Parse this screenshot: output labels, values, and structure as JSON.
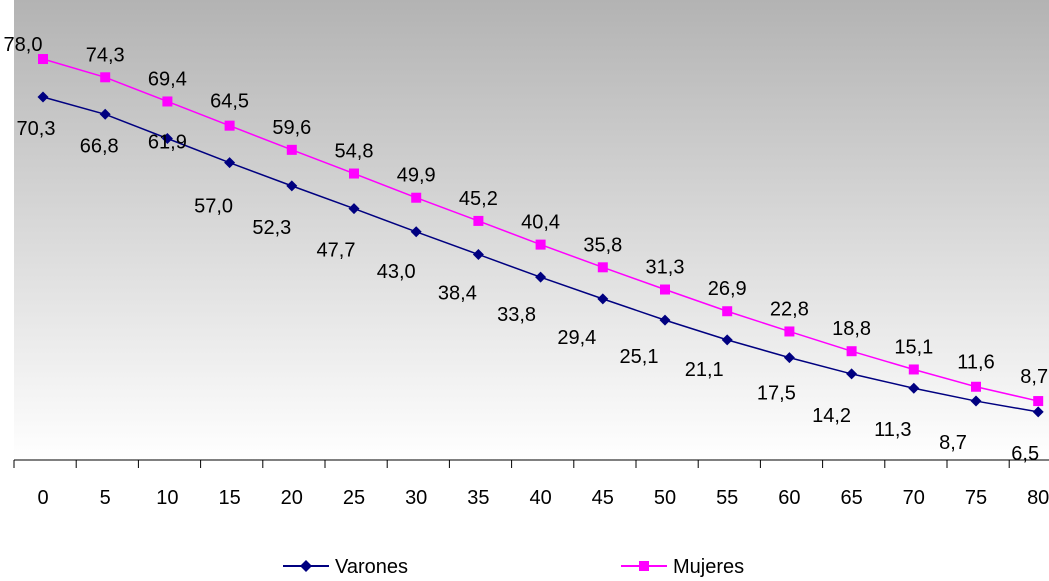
{
  "chart_data": {
    "type": "line",
    "title": "",
    "xlabel": "",
    "ylabel": "",
    "x": [
      "0",
      "5",
      "10",
      "15",
      "20",
      "25",
      "30",
      "35",
      "40",
      "45",
      "50",
      "55",
      "60",
      "65",
      "70",
      "75",
      "80"
    ],
    "ylim": [
      0,
      85
    ],
    "grid": false,
    "legend_position": "bottom",
    "series": [
      {
        "name": "Varones",
        "color": "#000080",
        "marker": "diamond",
        "values": [
          70.3,
          66.8,
          61.9,
          57.0,
          52.3,
          47.7,
          43.0,
          38.4,
          33.8,
          29.4,
          25.1,
          21.1,
          17.5,
          14.2,
          11.3,
          8.7,
          6.5
        ],
        "labels": [
          "70,3",
          "66,8",
          "61,9",
          "57,0",
          "52,3",
          "47,7",
          "43,0",
          "38,4",
          "33,8",
          "29,4",
          "25,1",
          "21,1",
          "17,5",
          "14,2",
          "11,3",
          "8,7",
          "6,5"
        ]
      },
      {
        "name": "Mujeres",
        "color": "#ff00ff",
        "marker": "square",
        "values": [
          78.0,
          74.3,
          69.4,
          64.5,
          59.6,
          54.8,
          49.9,
          45.2,
          40.4,
          35.8,
          31.3,
          26.9,
          22.8,
          18.8,
          15.1,
          11.6,
          8.7
        ],
        "labels": [
          "78,0",
          "74,3",
          "69,4",
          "64,5",
          "59,6",
          "54,8",
          "49,9",
          "45,2",
          "40,4",
          "35,8",
          "31,3",
          "26,9",
          "22,8",
          "18,8",
          "15,1",
          "11,6",
          "8,7"
        ]
      }
    ],
    "plot_background": {
      "top_color": "#b3b3b3",
      "bottom_color": "#ffffff"
    }
  }
}
